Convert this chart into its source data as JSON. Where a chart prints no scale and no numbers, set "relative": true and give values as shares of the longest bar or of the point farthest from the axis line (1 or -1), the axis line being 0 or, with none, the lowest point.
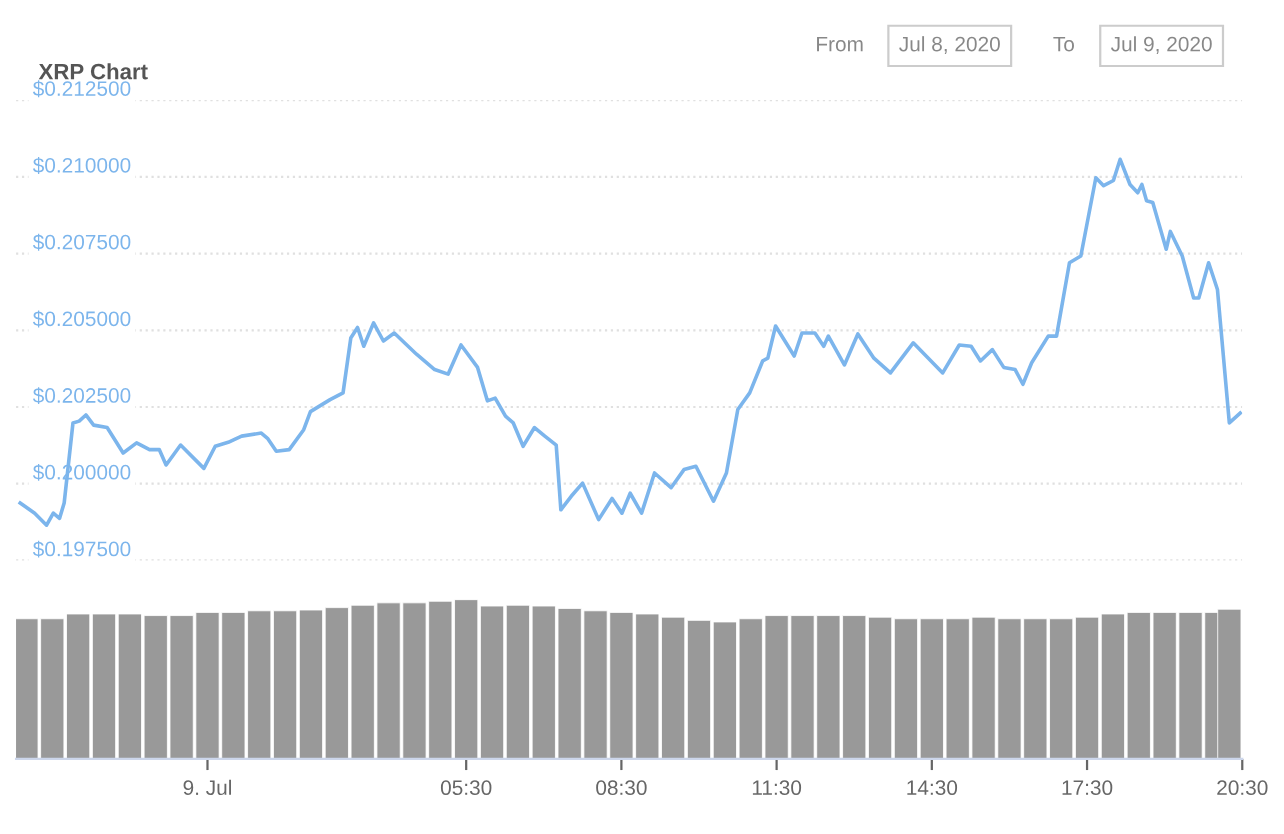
{
  "chart_data": [
    {
      "type": "line",
      "title": "XRP Chart",
      "annotations": [
        "From",
        "Jul 8, 2020",
        "To",
        "Jul 9, 2020"
      ],
      "x": [
        -3.12,
        -2.84,
        -2.61,
        -2.48,
        -2.36,
        -2.27,
        -2.1,
        -1.98,
        -1.85,
        -1.7,
        -1.44,
        -1.13,
        -0.87,
        -0.62,
        -0.43,
        -0.3,
        -0.02,
        0.43,
        0.65,
        0.9,
        1.16,
        1.54,
        1.66,
        1.83,
        2.08,
        2.36,
        2.49,
        2.87,
        3.12,
        3.27,
        3.4,
        3.52,
        3.71,
        3.9,
        4.11,
        4.54,
        4.89,
        5.15,
        5.4,
        5.72,
        5.91,
        6.06,
        6.26,
        6.41,
        6.6,
        6.82,
        7.02,
        7.24,
        7.33,
        7.53,
        7.75,
        8.06,
        8.32,
        8.51,
        8.67,
        8.89,
        9.14,
        9.46,
        9.71,
        9.94,
        10.28,
        10.53,
        10.75,
        10.98,
        11.23,
        11.33,
        11.48,
        11.84,
        11.99,
        12.24,
        12.41,
        12.5,
        12.81,
        13.07,
        13.38,
        13.7,
        14.14,
        14.71,
        15.03,
        15.26,
        15.44,
        15.67,
        15.89,
        16.11,
        16.26,
        16.43,
        16.75,
        16.91,
        17.16,
        17.38,
        17.67,
        17.82,
        18.01,
        18.14,
        18.33,
        18.48,
        18.56,
        18.65,
        18.77,
        19.03,
        19.11,
        19.34,
        19.56,
        19.66,
        19.85,
        20.02,
        20.25,
        20.46
      ],
      "series": [
        {
          "color": "#7cb5ec",
          "values": [
            0.19937,
            0.19904,
            0.19865,
            0.19904,
            0.19887,
            0.19937,
            0.20198,
            0.20204,
            0.20224,
            0.20191,
            0.20183,
            0.201,
            0.20133,
            0.20111,
            0.20111,
            0.20061,
            0.20126,
            0.2005,
            0.20122,
            0.20135,
            0.20155,
            0.20165,
            0.20148,
            0.20106,
            0.20111,
            0.20176,
            0.20235,
            0.20274,
            0.20296,
            0.20475,
            0.20509,
            0.20448,
            0.20524,
            0.20465,
            0.20491,
            0.20422,
            0.20372,
            0.20357,
            0.20452,
            0.20379,
            0.2027,
            0.20279,
            0.2022,
            0.20198,
            0.20122,
            0.20183,
            0.20155,
            0.20126,
            0.19915,
            0.19959,
            0.20002,
            0.19883,
            0.19952,
            0.19904,
            0.19969,
            0.19904,
            0.20035,
            0.19987,
            0.20046,
            0.20057,
            0.19943,
            0.20035,
            0.20242,
            0.20296,
            0.204,
            0.20409,
            0.20514,
            0.20416,
            0.20491,
            0.20491,
            0.20448,
            0.20481,
            0.20387,
            0.20488,
            0.20409,
            0.20361,
            0.20459,
            0.20361,
            0.20452,
            0.20448,
            0.204,
            0.20437,
            0.20379,
            0.20372,
            0.20324,
            0.20394,
            0.20481,
            0.20481,
            0.2072,
            0.20742,
            0.20997,
            0.20971,
            0.20988,
            0.21057,
            0.20975,
            0.20948,
            0.20975,
            0.20922,
            0.20916,
            0.20764,
            0.20822,
            0.20742,
            0.20605,
            0.20605,
            0.2072,
            0.20633,
            0.20198,
            0.2023
          ]
        }
      ],
      "xlim": [
        -3.2,
        20.5
      ],
      "ylim": [
        0.1975,
        0.2125
      ],
      "yticks": [
        {
          "value": 0.1975,
          "label": "$0.197500"
        },
        {
          "value": 0.2,
          "label": "$0.200000"
        },
        {
          "value": 0.2025,
          "label": "$0.202500"
        },
        {
          "value": 0.205,
          "label": "$0.205000"
        },
        {
          "value": 0.2075,
          "label": "$0.207500"
        },
        {
          "value": 0.21,
          "label": "$0.210000"
        },
        {
          "value": 0.2125,
          "label": "$0.212500"
        }
      ],
      "grid": "y",
      "marker": "none",
      "line_style": "solid",
      "tick_labels": "y"
    },
    {
      "type": "bar",
      "relative": true,
      "tick_labels": "x",
      "x": [
        -3.0,
        -2.5,
        -2.0,
        -1.5,
        -1.0,
        -0.5,
        0.0,
        0.5,
        1.0,
        1.5,
        2.0,
        2.5,
        3.0,
        3.5,
        4.0,
        4.5,
        5.0,
        5.5,
        6.0,
        6.5,
        7.0,
        7.5,
        8.0,
        8.5,
        9.0,
        9.5,
        10.0,
        10.5,
        11.0,
        11.5,
        12.0,
        12.5,
        13.0,
        13.5,
        14.0,
        14.5,
        15.0,
        15.5,
        16.0,
        16.5,
        17.0,
        17.5,
        18.0,
        18.5,
        19.0,
        19.5,
        20.0,
        20.25
      ],
      "series": [
        {
          "color": "#999999",
          "values": [
            0.88,
            0.88,
            0.91,
            0.91,
            0.91,
            0.9,
            0.9,
            0.92,
            0.92,
            0.93,
            0.93,
            0.935,
            0.95,
            0.965,
            0.98,
            0.98,
            0.99,
            1,
            0.96,
            0.965,
            0.96,
            0.945,
            0.93,
            0.92,
            0.91,
            0.89,
            0.87,
            0.86,
            0.88,
            0.9,
            0.9,
            0.9,
            0.9,
            0.89,
            0.88,
            0.88,
            0.88,
            0.89,
            0.88,
            0.88,
            0.88,
            0.89,
            0.91,
            0.92,
            0.92,
            0.92,
            0.92,
            0.94
          ]
        }
      ],
      "xlim": [
        -3.2,
        20.5
      ],
      "xticks": [
        {
          "value": 0.5,
          "label": "9. Jul"
        },
        {
          "value": 5.5,
          "label": "05:30"
        },
        {
          "value": 8.5,
          "label": "08:30"
        },
        {
          "value": 11.5,
          "label": "11:30"
        },
        {
          "value": 14.5,
          "label": "14:30"
        },
        {
          "value": 17.5,
          "label": "17:30"
        },
        {
          "value": 20.5,
          "label": "20:30"
        }
      ]
    }
  ]
}
